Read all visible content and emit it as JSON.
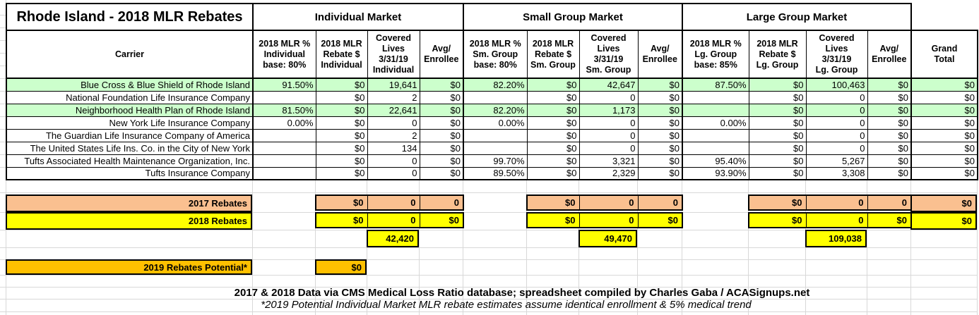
{
  "title": "Rhode Island - 2018 MLR Rebates",
  "market_groups": [
    "Individual Market",
    "Small Group Market",
    "Large Group Market"
  ],
  "columns": [
    "Carrier",
    "2018 MLR %\nIndividual\nbase: 80%",
    "2018 MLR\nRebate $\nIndividual",
    "Covered\nLives\n3/31/19\nIndividual",
    "Avg/\nEnrollee",
    "2018 MLR %\nSm. Group\nbase: 80%",
    "2018 MLR\nRebate $\nSm. Group",
    "Covered\nLives\n3/31/19\nSm. Group",
    "Avg/\nEnrollee",
    "2018 MLR %\nLg. Group\nbase: 85%",
    "2018 MLR\nRebate $\nLg. Group",
    "Covered\nLives\n3/31/19\nLg. Group",
    "Avg/\nEnrollee",
    "Grand\nTotal"
  ],
  "rows": [
    {
      "highlight": true,
      "cells": [
        "Blue Cross & Blue Shield of Rhode Island",
        "91.50%",
        "$0",
        "19,641",
        "$0",
        "82.20%",
        "$0",
        "42,647",
        "$0",
        "87.50%",
        "$0",
        "100,463",
        "$0",
        "$0"
      ]
    },
    {
      "highlight": false,
      "cells": [
        "National Foundation Life Insurance Company",
        "",
        "$0",
        "2",
        "$0",
        "",
        "$0",
        "0",
        "$0",
        "",
        "$0",
        "0",
        "$0",
        "$0"
      ]
    },
    {
      "highlight": true,
      "cells": [
        "Neighborhood Health Plan of Rhode Island",
        "81.50%",
        "$0",
        "22,641",
        "$0",
        "82.20%",
        "$0",
        "1,173",
        "$0",
        "",
        "$0",
        "0",
        "$0",
        "$0"
      ]
    },
    {
      "highlight": false,
      "cells": [
        "New York Life Insurance Company",
        "0.00%",
        "$0",
        "0",
        "$0",
        "0.00%",
        "$0",
        "0",
        "$0",
        "0.00%",
        "$0",
        "0",
        "$0",
        "$0"
      ]
    },
    {
      "highlight": false,
      "cells": [
        "The Guardian Life Insurance Company of America",
        "",
        "$0",
        "2",
        "$0",
        "",
        "$0",
        "0",
        "$0",
        "",
        "$0",
        "0",
        "$0",
        "$0"
      ]
    },
    {
      "highlight": false,
      "cells": [
        "The United States Life Ins. Co. in the City of New York",
        "",
        "$0",
        "134",
        "$0",
        "",
        "$0",
        "0",
        "$0",
        "",
        "$0",
        "0",
        "$0",
        "$0"
      ]
    },
    {
      "highlight": false,
      "cells": [
        "Tufts Associated Health Maintenance Organization, Inc.",
        "",
        "$0",
        "0",
        "$0",
        "99.70%",
        "$0",
        "3,321",
        "$0",
        "95.40%",
        "$0",
        "5,267",
        "$0",
        "$0"
      ]
    },
    {
      "highlight": false,
      "cells": [
        "Tufts Insurance Company",
        "",
        "$0",
        "0",
        "$0",
        "89.50%",
        "$0",
        "2,329",
        "$0",
        "93.90%",
        "$0",
        "3,308",
        "$0",
        "$0"
      ]
    }
  ],
  "summary": {
    "r2017": {
      "label": "2017 Rebates",
      "ind": [
        "$0",
        "0",
        "0"
      ],
      "sg": [
        "$0",
        "0",
        "0"
      ],
      "lg": [
        "$0",
        "0",
        "0"
      ],
      "grand": "$0"
    },
    "r2018": {
      "label": "2018 Rebates",
      "ind": [
        "$0",
        "0",
        "$0"
      ],
      "sg": [
        "$0",
        "0",
        "$0"
      ],
      "lg": [
        "$0",
        "0",
        "$0"
      ],
      "grand": "$0"
    },
    "covered_totals": {
      "individual": "42,420",
      "small_group": "49,470",
      "large_group": "109,038"
    },
    "r2019": {
      "label": "2019 Rebates Potential*",
      "value": "$0"
    }
  },
  "footer": {
    "line1": "2017 & 2018 Data via CMS Medical Loss Ratio database; spreadsheet compiled by Charles Gaba / ACASignups.net",
    "line2": "*2019 Potential Individual Market MLR rebate estimates assume identical enrollment & 5% medical trend"
  },
  "colors": {
    "highlight_green": "#CCFFCC",
    "rebates_2017": "#FAC090",
    "rebates_2018": "#FFFF00",
    "potential_gold": "#FFC000"
  }
}
